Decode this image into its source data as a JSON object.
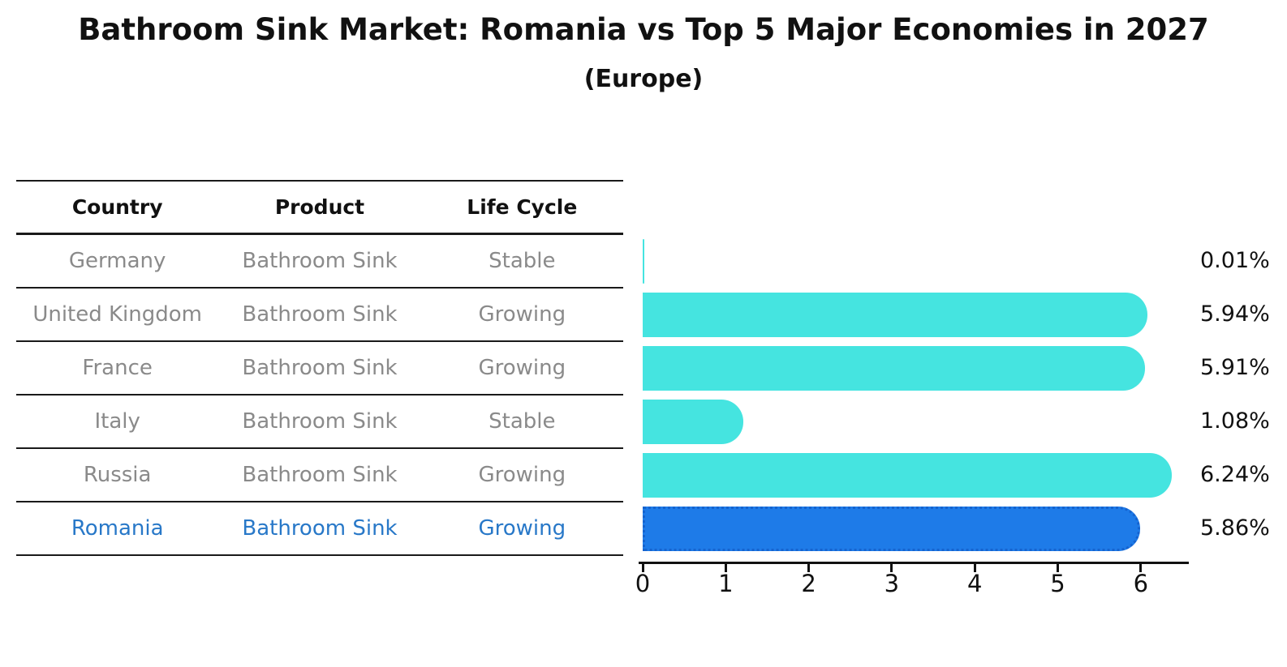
{
  "title": "Bathroom Sink Market: Romania vs Top 5 Major Economies in 2027",
  "subtitle": "(Europe)",
  "table": {
    "headers": [
      "Country",
      "Product",
      "Life Cycle"
    ],
    "rows": [
      {
        "country": "Germany",
        "product": "Bathroom Sink",
        "life_cycle": "Stable",
        "highlight": false
      },
      {
        "country": "United Kingdom",
        "product": "Bathroom Sink",
        "life_cycle": "Growing",
        "highlight": false
      },
      {
        "country": "France",
        "product": "Bathroom Sink",
        "life_cycle": "Growing",
        "highlight": false
      },
      {
        "country": "Italy",
        "product": "Bathroom Sink",
        "life_cycle": "Stable",
        "highlight": false
      },
      {
        "country": "Russia",
        "product": "Bathroom Sink",
        "life_cycle": "Growing",
        "highlight": false
      },
      {
        "country": "Romania",
        "product": "Bathroom Sink",
        "life_cycle": "Growing",
        "highlight": true
      }
    ]
  },
  "chart_data": {
    "type": "bar",
    "orientation": "horizontal",
    "title": "Bathroom Sink Market: Romania vs Top 5 Major Economies in 2027",
    "subtitle": "(Europe)",
    "categories": [
      "Germany",
      "United Kingdom",
      "France",
      "Italy",
      "Russia",
      "Romania"
    ],
    "values": [
      0.01,
      5.94,
      5.91,
      1.08,
      6.24,
      5.86
    ],
    "value_labels": [
      "0.01%",
      "5.94%",
      "5.91%",
      "1.08%",
      "6.24%",
      "5.86%"
    ],
    "highlight_category": "Romania",
    "xlim": [
      0,
      6.5
    ],
    "x_ticks": [
      "0",
      "1",
      "2",
      "3",
      "4",
      "5",
      "6"
    ],
    "grid": false,
    "legend": false,
    "colors": {
      "bar_default": "#45e4e0",
      "bar_highlight": "#1e7be8",
      "bar_highlight_border": "#1563cf",
      "highlight_text": "#2878c8",
      "cell_text": "#8a8a8a",
      "header_text": "#111111",
      "axis": "#111111"
    }
  }
}
